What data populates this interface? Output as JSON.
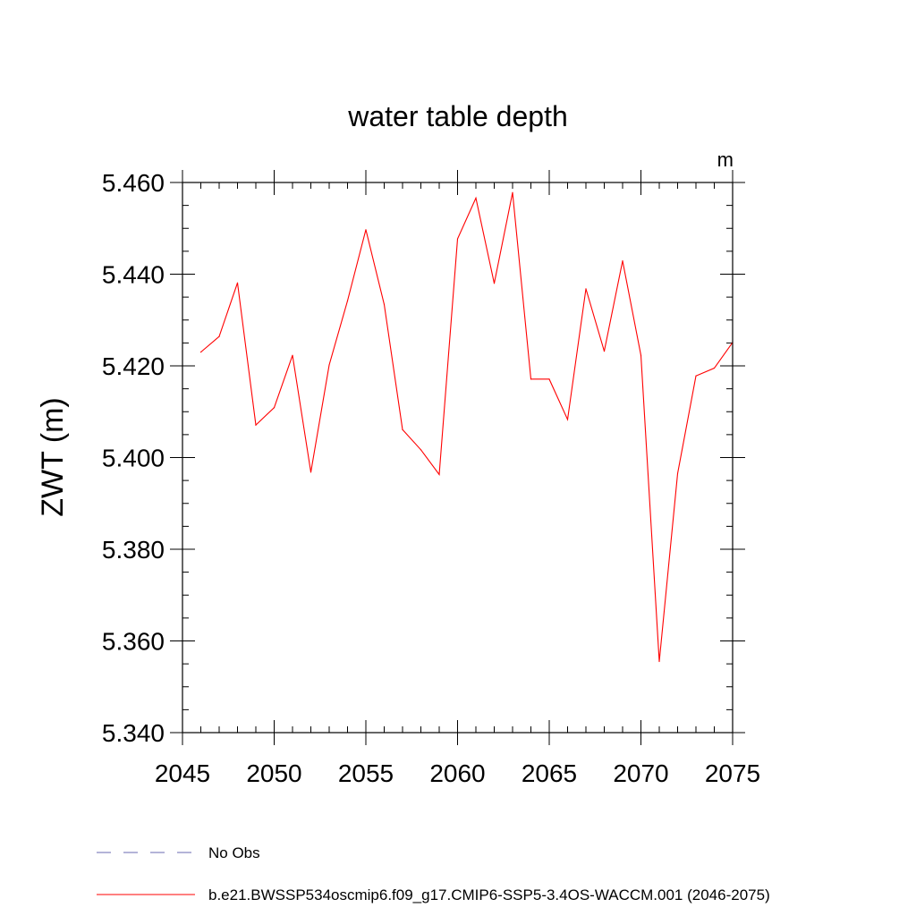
{
  "chart_data": {
    "type": "line",
    "title": "water table depth",
    "units_label": "m",
    "xlabel": "",
    "ylabel": "ZWT  (m)",
    "xlim": [
      2045,
      2075
    ],
    "ylim": [
      5.34,
      5.46
    ],
    "x_ticks": [
      2045,
      2050,
      2055,
      2060,
      2065,
      2070,
      2075
    ],
    "x_tick_labels": [
      "2045",
      "2050",
      "2055",
      "2060",
      "2065",
      "2070",
      "2075"
    ],
    "x_minor_step": 1,
    "y_ticks": [
      5.34,
      5.36,
      5.38,
      5.4,
      5.42,
      5.44,
      5.46
    ],
    "y_tick_labels": [
      "5.340",
      "5.360",
      "5.380",
      "5.400",
      "5.420",
      "5.440",
      "5.460"
    ],
    "y_minor_step": 0.005,
    "grid": false,
    "series": [
      {
        "name": "b.e21.BWSSP534oscmip6.f09_g17.CMIP6-SSP5-3.4OS-WACCM.001 (2046-2075)",
        "color": "#ff0000",
        "style": "solid",
        "x": [
          2046,
          2047,
          2048,
          2049,
          2050,
          2051,
          2052,
          2053,
          2054,
          2055,
          2056,
          2057,
          2058,
          2059,
          2060,
          2061,
          2062,
          2063,
          2064,
          2065,
          2066,
          2067,
          2068,
          2069,
          2070,
          2071,
          2072,
          2073,
          2074,
          2075
        ],
        "values": [
          5.423,
          5.4264,
          5.4381,
          5.4071,
          5.4109,
          5.4223,
          5.3968,
          5.4202,
          5.4342,
          5.4497,
          5.4334,
          5.4061,
          5.4017,
          5.3963,
          5.4477,
          5.4566,
          5.438,
          5.4578,
          5.4171,
          5.4171,
          5.4083,
          5.4368,
          5.4232,
          5.4429,
          5.4223,
          5.3555,
          5.3965,
          5.4178,
          5.4195,
          5.4251
        ]
      }
    ],
    "legend": {
      "placement": "bottom-left",
      "entries": [
        {
          "label": "No Obs",
          "color": "#6a6ab0",
          "style": "dashed"
        },
        {
          "label": "b.e21.BWSSP534oscmip6.f09_g17.CMIP6-SSP5-3.4OS-WACCM.001 (2046-2075)",
          "color": "#ff0000",
          "style": "solid"
        }
      ]
    }
  }
}
